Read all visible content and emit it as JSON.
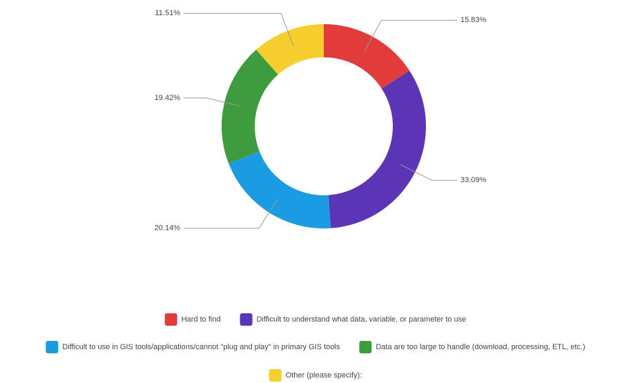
{
  "chart_data": {
    "type": "pie",
    "donut": true,
    "categories": [
      "Hard to find",
      "Difficult to understand what data, variable, or parameter to use",
      "Difficult to use in GIS tools/applications/cannot \"plug and play\" in primary GIS tools",
      "Data are too large to handle (download, processing, ETL, etc.)",
      "Other (please specify):"
    ],
    "values": [
      15.83,
      33.09,
      20.14,
      19.42,
      11.51
    ],
    "value_labels": [
      "15.83%",
      "33.09%",
      "20.14%",
      "19.42%",
      "11.51%"
    ],
    "colors": [
      "#e23b3b",
      "#5c35b6",
      "#1a9be2",
      "#3e9c3e",
      "#f6cf2e"
    ],
    "legend": "bottom"
  }
}
